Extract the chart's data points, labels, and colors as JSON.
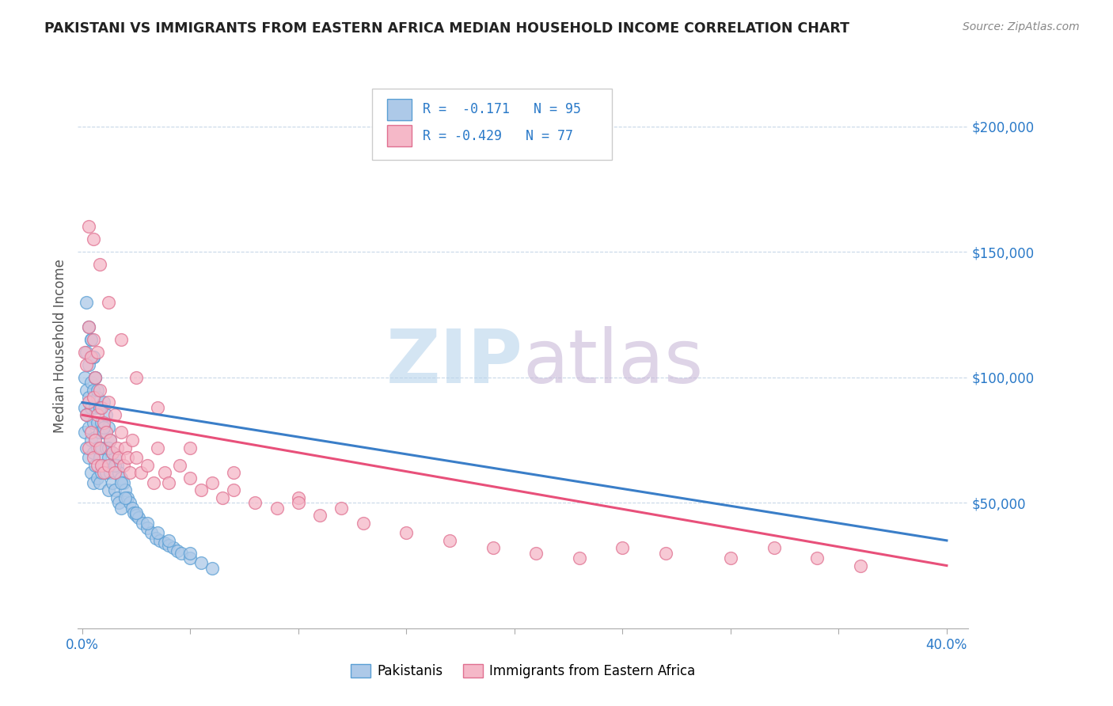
{
  "title": "PAKISTANI VS IMMIGRANTS FROM EASTERN AFRICA MEDIAN HOUSEHOLD INCOME CORRELATION CHART",
  "source_text": "Source: ZipAtlas.com",
  "ylabel": "Median Household Income",
  "xlim": [
    -0.002,
    0.41
  ],
  "ylim": [
    0,
    225000
  ],
  "xticks": [
    0.0,
    0.05,
    0.1,
    0.15,
    0.2,
    0.25,
    0.3,
    0.35,
    0.4
  ],
  "xticklabels": [
    "0.0%",
    "",
    "",
    "",
    "",
    "",
    "",
    "",
    "40.0%"
  ],
  "yticks": [
    0,
    50000,
    100000,
    150000,
    200000
  ],
  "yticklabels": [
    "",
    "$50,000",
    "$100,000",
    "$150,000",
    "$200,000"
  ],
  "ytick_color": "#2979c8",
  "xtick_color": "#2979c8",
  "series1_color": "#adc9e8",
  "series1_edge": "#5a9fd4",
  "series2_color": "#f5b8c8",
  "series2_edge": "#e07090",
  "line1_color": "#3a7ec8",
  "line2_color": "#e8507a",
  "legend_color": "#2979c8",
  "watermark_color_ZIP": "#b8d4ec",
  "watermark_color_atlas": "#c8b8d8",
  "grid_color": "#c8d8e8",
  "background_color": "#ffffff",
  "line1_x0": 0.0,
  "line1_y0": 90000,
  "line1_x1": 0.4,
  "line1_y1": 35000,
  "line2_x0": 0.0,
  "line2_y0": 85000,
  "line2_x1": 0.4,
  "line2_y1": 25000,
  "pakistanis_x": [
    0.001,
    0.001,
    0.001,
    0.002,
    0.002,
    0.002,
    0.002,
    0.003,
    0.003,
    0.003,
    0.003,
    0.004,
    0.004,
    0.004,
    0.004,
    0.004,
    0.005,
    0.005,
    0.005,
    0.005,
    0.005,
    0.006,
    0.006,
    0.006,
    0.006,
    0.007,
    0.007,
    0.007,
    0.007,
    0.008,
    0.008,
    0.008,
    0.008,
    0.009,
    0.009,
    0.009,
    0.01,
    0.01,
    0.01,
    0.011,
    0.011,
    0.011,
    0.012,
    0.012,
    0.012,
    0.013,
    0.013,
    0.014,
    0.014,
    0.015,
    0.015,
    0.016,
    0.016,
    0.017,
    0.017,
    0.018,
    0.018,
    0.019,
    0.02,
    0.021,
    0.022,
    0.023,
    0.024,
    0.025,
    0.026,
    0.028,
    0.03,
    0.032,
    0.034,
    0.036,
    0.038,
    0.04,
    0.042,
    0.044,
    0.046,
    0.05,
    0.055,
    0.06,
    0.002,
    0.003,
    0.004,
    0.005,
    0.006,
    0.007,
    0.008,
    0.01,
    0.012,
    0.015,
    0.018,
    0.02,
    0.025,
    0.03,
    0.035,
    0.04,
    0.05
  ],
  "pakistanis_y": [
    100000,
    88000,
    78000,
    110000,
    95000,
    85000,
    72000,
    105000,
    92000,
    80000,
    68000,
    115000,
    98000,
    88000,
    75000,
    62000,
    108000,
    95000,
    82000,
    70000,
    58000,
    100000,
    88000,
    76000,
    65000,
    92000,
    82000,
    72000,
    60000,
    88000,
    78000,
    68000,
    58000,
    82000,
    72000,
    62000,
    90000,
    78000,
    65000,
    85000,
    72000,
    62000,
    80000,
    68000,
    55000,
    75000,
    62000,
    70000,
    58000,
    68000,
    55000,
    65000,
    52000,
    62000,
    50000,
    60000,
    48000,
    58000,
    55000,
    52000,
    50000,
    48000,
    46000,
    45000,
    44000,
    42000,
    40000,
    38000,
    36000,
    35000,
    34000,
    33000,
    32000,
    31000,
    30000,
    28000,
    26000,
    24000,
    130000,
    120000,
    115000,
    108000,
    100000,
    95000,
    88000,
    80000,
    72000,
    65000,
    58000,
    52000,
    46000,
    42000,
    38000,
    35000,
    30000
  ],
  "eastafrica_x": [
    0.001,
    0.002,
    0.002,
    0.003,
    0.003,
    0.003,
    0.004,
    0.004,
    0.005,
    0.005,
    0.005,
    0.006,
    0.006,
    0.007,
    0.007,
    0.007,
    0.008,
    0.008,
    0.009,
    0.009,
    0.01,
    0.01,
    0.011,
    0.012,
    0.012,
    0.013,
    0.014,
    0.015,
    0.015,
    0.016,
    0.017,
    0.018,
    0.019,
    0.02,
    0.021,
    0.022,
    0.023,
    0.025,
    0.027,
    0.03,
    0.033,
    0.035,
    0.038,
    0.04,
    0.045,
    0.05,
    0.055,
    0.06,
    0.065,
    0.07,
    0.08,
    0.09,
    0.1,
    0.11,
    0.12,
    0.13,
    0.15,
    0.17,
    0.19,
    0.21,
    0.23,
    0.25,
    0.27,
    0.3,
    0.32,
    0.34,
    0.36,
    0.003,
    0.005,
    0.008,
    0.012,
    0.018,
    0.025,
    0.035,
    0.05,
    0.07,
    0.1
  ],
  "eastafrica_y": [
    110000,
    105000,
    85000,
    120000,
    90000,
    72000,
    108000,
    78000,
    115000,
    92000,
    68000,
    100000,
    75000,
    110000,
    85000,
    65000,
    95000,
    72000,
    88000,
    65000,
    82000,
    62000,
    78000,
    90000,
    65000,
    75000,
    70000,
    85000,
    62000,
    72000,
    68000,
    78000,
    65000,
    72000,
    68000,
    62000,
    75000,
    68000,
    62000,
    65000,
    58000,
    72000,
    62000,
    58000,
    65000,
    60000,
    55000,
    58000,
    52000,
    55000,
    50000,
    48000,
    52000,
    45000,
    48000,
    42000,
    38000,
    35000,
    32000,
    30000,
    28000,
    32000,
    30000,
    28000,
    32000,
    28000,
    25000,
    160000,
    155000,
    145000,
    130000,
    115000,
    100000,
    88000,
    72000,
    62000,
    50000
  ]
}
